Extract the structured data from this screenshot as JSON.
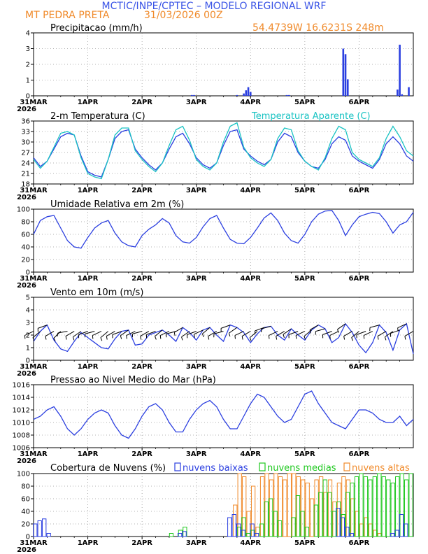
{
  "header": {
    "line1": "MCTIC/INPE/CPTEC – MODELO REGIONAL WRF",
    "location": "MT PEDRA PRETA",
    "run": "31/03/2026 00Z",
    "coords": "54.4739W 16.6231S 248m"
  },
  "x_axis": {
    "year": "2026",
    "labels": [
      "31MAR",
      "1APR",
      "2APR",
      "3APR",
      "4APR",
      "5APR",
      "6APR"
    ],
    "hours": [
      0,
      24,
      48,
      72,
      96,
      120,
      144
    ],
    "range_hours": [
      0,
      168
    ]
  },
  "colors": {
    "main_line": "#2b3fe0",
    "apparent_line": "#19c3c3",
    "header_blue": "#3a54e6",
    "header_orange": "#f08a2a",
    "wind_barb": "#000000",
    "cloud_low": "#2b3fe0",
    "cloud_mid": "#1fc81f",
    "cloud_high": "#f08a2a"
  },
  "chart_data": [
    {
      "id": "precip",
      "type": "bar",
      "title": "Precipitacao (mm/h)",
      "ylim": [
        0,
        4
      ],
      "yticks": [
        "0",
        "1",
        "2",
        "3",
        "4"
      ],
      "x_hours": [
        70,
        71,
        90,
        93,
        94,
        95,
        96,
        112,
        113,
        137,
        138,
        139,
        161,
        162,
        163,
        166
      ],
      "values": [
        0.05,
        0.05,
        0.05,
        0.15,
        0.35,
        0.55,
        0.25,
        0.05,
        0.05,
        3.0,
        2.65,
        1.05,
        0.4,
        3.25,
        0.1,
        0.55
      ]
    },
    {
      "id": "temperature",
      "type": "line",
      "title": "2-m Temperatura (C)",
      "ylim": [
        18,
        36
      ],
      "yticks": [
        "18",
        "21",
        "24",
        "27",
        "30",
        "33",
        "36"
      ],
      "x_hours": [
        0,
        3,
        6,
        9,
        12,
        15,
        18,
        21,
        24,
        27,
        30,
        33,
        36,
        39,
        42,
        45,
        48,
        51,
        54,
        57,
        60,
        63,
        66,
        69,
        72,
        75,
        78,
        81,
        84,
        87,
        90,
        93,
        96,
        99,
        102,
        105,
        108,
        111,
        114,
        117,
        120,
        123,
        126,
        129,
        132,
        135,
        138,
        141,
        144,
        147,
        150,
        153,
        156,
        159,
        162,
        165,
        168
      ],
      "series": [
        {
          "name": "2-m Temperatura",
          "values": [
            25.5,
            23.0,
            24.5,
            28.0,
            31.5,
            32.5,
            32.0,
            26.0,
            21.5,
            20.5,
            20.0,
            25.0,
            31.0,
            33.0,
            33.5,
            28.0,
            25.5,
            23.5,
            22.0,
            24.0,
            28.0,
            31.5,
            32.5,
            29.5,
            25.5,
            23.5,
            22.5,
            24.0,
            29.0,
            33.0,
            33.5,
            28.0,
            26.0,
            24.5,
            23.5,
            25.0,
            30.0,
            32.5,
            31.5,
            27.0,
            24.5,
            23.0,
            22.5,
            25.0,
            29.5,
            31.5,
            30.5,
            26.0,
            24.5,
            23.5,
            22.5,
            25.0,
            29.5,
            31.5,
            29.5,
            26.0,
            24.5
          ]
        },
        {
          "name": "Temperatura Aparente (C)",
          "values": [
            25.0,
            22.5,
            24.5,
            28.5,
            32.5,
            33.0,
            32.0,
            25.5,
            21.0,
            20.0,
            19.5,
            25.0,
            32.0,
            34.0,
            34.0,
            27.5,
            25.0,
            23.0,
            21.5,
            24.0,
            29.0,
            33.5,
            34.5,
            30.5,
            25.0,
            23.0,
            22.0,
            24.0,
            30.0,
            34.5,
            35.5,
            28.5,
            25.5,
            24.0,
            23.0,
            25.0,
            31.0,
            34.0,
            33.5,
            27.5,
            24.5,
            23.0,
            22.0,
            25.5,
            31.0,
            34.5,
            33.5,
            27.0,
            25.0,
            24.0,
            23.0,
            25.5,
            31.0,
            34.5,
            31.5,
            27.5,
            26.0
          ]
        }
      ]
    },
    {
      "id": "humidity",
      "type": "line",
      "title": "Umidade Relativa em 2m (%)",
      "ylim": [
        0,
        100
      ],
      "yticks": [
        "0",
        "20",
        "40",
        "60",
        "80",
        "100"
      ],
      "x_hours": [
        0,
        3,
        6,
        9,
        12,
        15,
        18,
        21,
        24,
        27,
        30,
        33,
        36,
        39,
        42,
        45,
        48,
        51,
        54,
        57,
        60,
        63,
        66,
        69,
        72,
        75,
        78,
        81,
        84,
        87,
        90,
        93,
        96,
        99,
        102,
        105,
        108,
        111,
        114,
        117,
        120,
        123,
        126,
        129,
        132,
        135,
        138,
        141,
        144,
        147,
        150,
        153,
        156,
        159,
        162,
        165,
        168
      ],
      "series": [
        {
          "name": "Umidade Relativa",
          "values": [
            60,
            82,
            88,
            90,
            70,
            50,
            40,
            38,
            55,
            70,
            78,
            82,
            62,
            48,
            42,
            40,
            58,
            68,
            75,
            85,
            78,
            58,
            48,
            46,
            55,
            72,
            85,
            90,
            70,
            52,
            46,
            45,
            55,
            70,
            86,
            94,
            82,
            62,
            50,
            46,
            60,
            80,
            92,
            97,
            98,
            82,
            58,
            75,
            88,
            92,
            95,
            93,
            80,
            62,
            75,
            80,
            95
          ]
        }
      ]
    },
    {
      "id": "wind",
      "type": "line",
      "title": "Vento em 10m (m/s)",
      "ylim": [
        0,
        5
      ],
      "yticks": [
        "0",
        "1",
        "2",
        "3",
        "4",
        "5"
      ],
      "x_hours": [
        0,
        3,
        6,
        9,
        12,
        15,
        18,
        21,
        24,
        27,
        30,
        33,
        36,
        39,
        42,
        45,
        48,
        51,
        54,
        57,
        60,
        63,
        66,
        69,
        72,
        75,
        78,
        81,
        84,
        87,
        90,
        93,
        96,
        99,
        102,
        105,
        108,
        111,
        114,
        117,
        120,
        123,
        126,
        129,
        132,
        135,
        138,
        141,
        144,
        147,
        150,
        153,
        156,
        159,
        162,
        165,
        168
      ],
      "series": [
        {
          "name": "Vento 10m",
          "values": [
            1.5,
            2.3,
            2.8,
            1.6,
            0.9,
            0.7,
            1.5,
            2.2,
            1.8,
            1.4,
            1.0,
            0.9,
            1.7,
            2.3,
            2.4,
            1.2,
            1.3,
            2.0,
            2.2,
            2.4,
            2.0,
            1.5,
            2.6,
            2.2,
            1.6,
            2.4,
            2.6,
            2.0,
            1.5,
            2.8,
            2.6,
            2.2,
            1.4,
            2.1,
            2.6,
            2.7,
            2.0,
            1.6,
            2.5,
            2.0,
            1.6,
            2.4,
            2.8,
            2.5,
            1.4,
            1.8,
            2.9,
            2.2,
            1.2,
            0.6,
            1.4,
            2.8,
            2.2,
            0.8,
            2.4,
            2.9,
            0.5
          ]
        }
      ],
      "barb_directions_deg": [
        245,
        230,
        250,
        240,
        225,
        260,
        240,
        235,
        250,
        255,
        245,
        230,
        240,
        250,
        235,
        245,
        255,
        240,
        250,
        230,
        245,
        255,
        240,
        235,
        250,
        245,
        230,
        240,
        255,
        250,
        235,
        245,
        240,
        230,
        250,
        255,
        245,
        240,
        235,
        250,
        245,
        230,
        240,
        255,
        250,
        245,
        235,
        240,
        230,
        250,
        245,
        255,
        240,
        235,
        250,
        245,
        240
      ]
    },
    {
      "id": "pressure",
      "type": "line",
      "title": "Pressao ao Nivel Medio do Mar (hPa)",
      "ylim": [
        1006,
        1016
      ],
      "yticks": [
        "1006",
        "1008",
        "1010",
        "1012",
        "1014",
        "1016"
      ],
      "x_hours": [
        0,
        3,
        6,
        9,
        12,
        15,
        18,
        21,
        24,
        27,
        30,
        33,
        36,
        39,
        42,
        45,
        48,
        51,
        54,
        57,
        60,
        63,
        66,
        69,
        72,
        75,
        78,
        81,
        84,
        87,
        90,
        93,
        96,
        99,
        102,
        105,
        108,
        111,
        114,
        117,
        120,
        123,
        126,
        129,
        132,
        135,
        138,
        141,
        144,
        147,
        150,
        153,
        156,
        159,
        162,
        165,
        168
      ],
      "series": [
        {
          "name": "Pressao",
          "values": [
            1010.5,
            1011.0,
            1012.0,
            1012.5,
            1011.0,
            1009.0,
            1008.0,
            1009.0,
            1010.5,
            1011.5,
            1012.0,
            1011.5,
            1009.5,
            1008.0,
            1007.5,
            1009.0,
            1011.0,
            1012.5,
            1013.0,
            1012.0,
            1010.0,
            1008.5,
            1008.5,
            1010.5,
            1012.0,
            1013.0,
            1013.5,
            1012.5,
            1010.5,
            1009.0,
            1009.0,
            1011.0,
            1013.0,
            1014.5,
            1014.0,
            1012.5,
            1011.0,
            1010.0,
            1010.5,
            1012.5,
            1014.5,
            1015.0,
            1013.0,
            1011.5,
            1010.0,
            1009.5,
            1009.0,
            1010.5,
            1012.0,
            1012.0,
            1011.5,
            1010.5,
            1010.0,
            1010.0,
            1011.0,
            1009.5,
            1010.5
          ]
        }
      ]
    },
    {
      "id": "clouds",
      "type": "bar",
      "title": "Cobertura de Nuvens (%)",
      "legend": [
        "nuvens baixas",
        "nuvens medias",
        "nuvens altas"
      ],
      "ylim": [
        0,
        100
      ],
      "yticks": [
        "0",
        "20",
        "40",
        "60",
        "80",
        "100"
      ],
      "x_hours": [
        0,
        2,
        4,
        6,
        8,
        10,
        12,
        14,
        16,
        18,
        20,
        22,
        24,
        26,
        28,
        30,
        32,
        34,
        36,
        38,
        40,
        42,
        44,
        46,
        48,
        50,
        52,
        54,
        56,
        58,
        60,
        62,
        64,
        66,
        68,
        70,
        72,
        74,
        76,
        78,
        80,
        82,
        84,
        86,
        88,
        90,
        92,
        94,
        96,
        98,
        100,
        102,
        104,
        106,
        108,
        110,
        112,
        114,
        116,
        118,
        120,
        122,
        124,
        126,
        128,
        130,
        132,
        134,
        136,
        138,
        140,
        142,
        144,
        146,
        148,
        150,
        152,
        154,
        156,
        158,
        160,
        162,
        164,
        166
      ],
      "series": [
        {
          "name": "nuvens baixas",
          "values": [
            20,
            25,
            28,
            5,
            0,
            0,
            0,
            0,
            0,
            0,
            0,
            0,
            0,
            0,
            0,
            0,
            0,
            0,
            0,
            0,
            0,
            0,
            0,
            0,
            0,
            0,
            0,
            0,
            0,
            0,
            0,
            0,
            5,
            8,
            0,
            0,
            0,
            0,
            0,
            0,
            0,
            0,
            0,
            30,
            35,
            20,
            10,
            0,
            20,
            5,
            0,
            0,
            0,
            0,
            0,
            0,
            0,
            0,
            0,
            0,
            0,
            0,
            0,
            0,
            0,
            0,
            0,
            45,
            30,
            15,
            5,
            0,
            0,
            0,
            0,
            0,
            0,
            0,
            0,
            5,
            10,
            35,
            20,
            0
          ]
        },
        {
          "name": "nuvens medias",
          "values": [
            0,
            0,
            0,
            0,
            0,
            0,
            0,
            0,
            0,
            0,
            0,
            0,
            0,
            0,
            0,
            0,
            0,
            0,
            0,
            0,
            0,
            0,
            0,
            0,
            0,
            0,
            0,
            0,
            0,
            0,
            5,
            0,
            10,
            15,
            0,
            0,
            0,
            0,
            0,
            0,
            0,
            0,
            0,
            0,
            0,
            15,
            30,
            5,
            10,
            0,
            20,
            55,
            60,
            40,
            25,
            0,
            0,
            30,
            65,
            40,
            15,
            0,
            50,
            70,
            90,
            70,
            40,
            55,
            35,
            70,
            85,
            95,
            100,
            95,
            90,
            95,
            100,
            95,
            90,
            85,
            95,
            100,
            90,
            100
          ]
        },
        {
          "name": "nuvens altas",
          "values": [
            0,
            0,
            0,
            0,
            0,
            0,
            0,
            0,
            0,
            0,
            0,
            0,
            0,
            0,
            0,
            0,
            0,
            0,
            0,
            0,
            0,
            0,
            0,
            0,
            0,
            0,
            0,
            0,
            0,
            0,
            0,
            0,
            0,
            0,
            0,
            0,
            0,
            0,
            0,
            0,
            0,
            0,
            0,
            0,
            50,
            100,
            95,
            40,
            80,
            15,
            95,
            100,
            90,
            100,
            95,
            90,
            100,
            100,
            95,
            90,
            85,
            60,
            90,
            95,
            70,
            90,
            55,
            85,
            95,
            90,
            60,
            40,
            20,
            30,
            20,
            10,
            5,
            0,
            0,
            0,
            0,
            0,
            0,
            0
          ]
        }
      ]
    }
  ]
}
